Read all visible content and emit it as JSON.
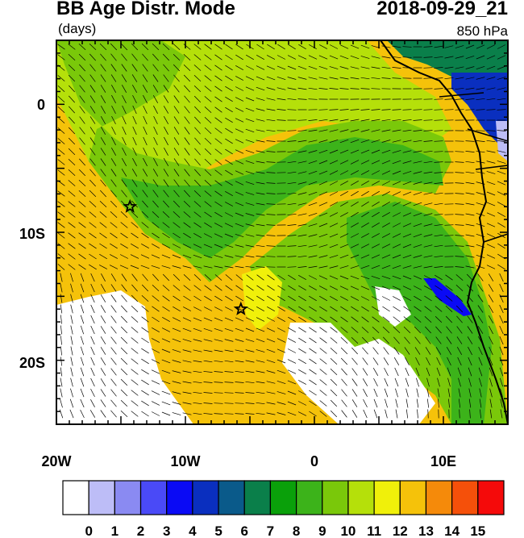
{
  "header": {
    "title": "BB Age Distr. Mode",
    "units": "(days)",
    "datetime": "2018-09-29_21",
    "level": "850 hPa"
  },
  "axes": {
    "x_ticks": [
      "20W",
      "10W",
      "0",
      "10E"
    ],
    "y_ticks": [
      "0",
      "10S",
      "20S"
    ],
    "lon_range": [
      -20,
      15
    ],
    "lat_range": [
      -25,
      5
    ]
  },
  "colorbar": {
    "labels": [
      "0",
      "1",
      "2",
      "3",
      "4",
      "5",
      "6",
      "7",
      "8",
      "9",
      "10",
      "11",
      "12",
      "13",
      "14",
      "15"
    ],
    "colors": [
      "#ffffff",
      "#bdbdf7",
      "#8a8af2",
      "#4a4af7",
      "#0a0af5",
      "#0a2fbf",
      "#0a5a8a",
      "#0a7f4a",
      "#0aa00a",
      "#3cb31a",
      "#7ac80a",
      "#b5e00a",
      "#f0f00a",
      "#f5c20a",
      "#f58a0a",
      "#f5500a",
      "#f50a0a"
    ]
  },
  "markers": [
    {
      "name": "star",
      "lon": -14.3,
      "lat": -8.0
    },
    {
      "name": "star",
      "lon": -5.7,
      "lat": -16.0
    }
  ],
  "fields": {
    "background": "#f5c20a",
    "coast_color": "#000000"
  }
}
